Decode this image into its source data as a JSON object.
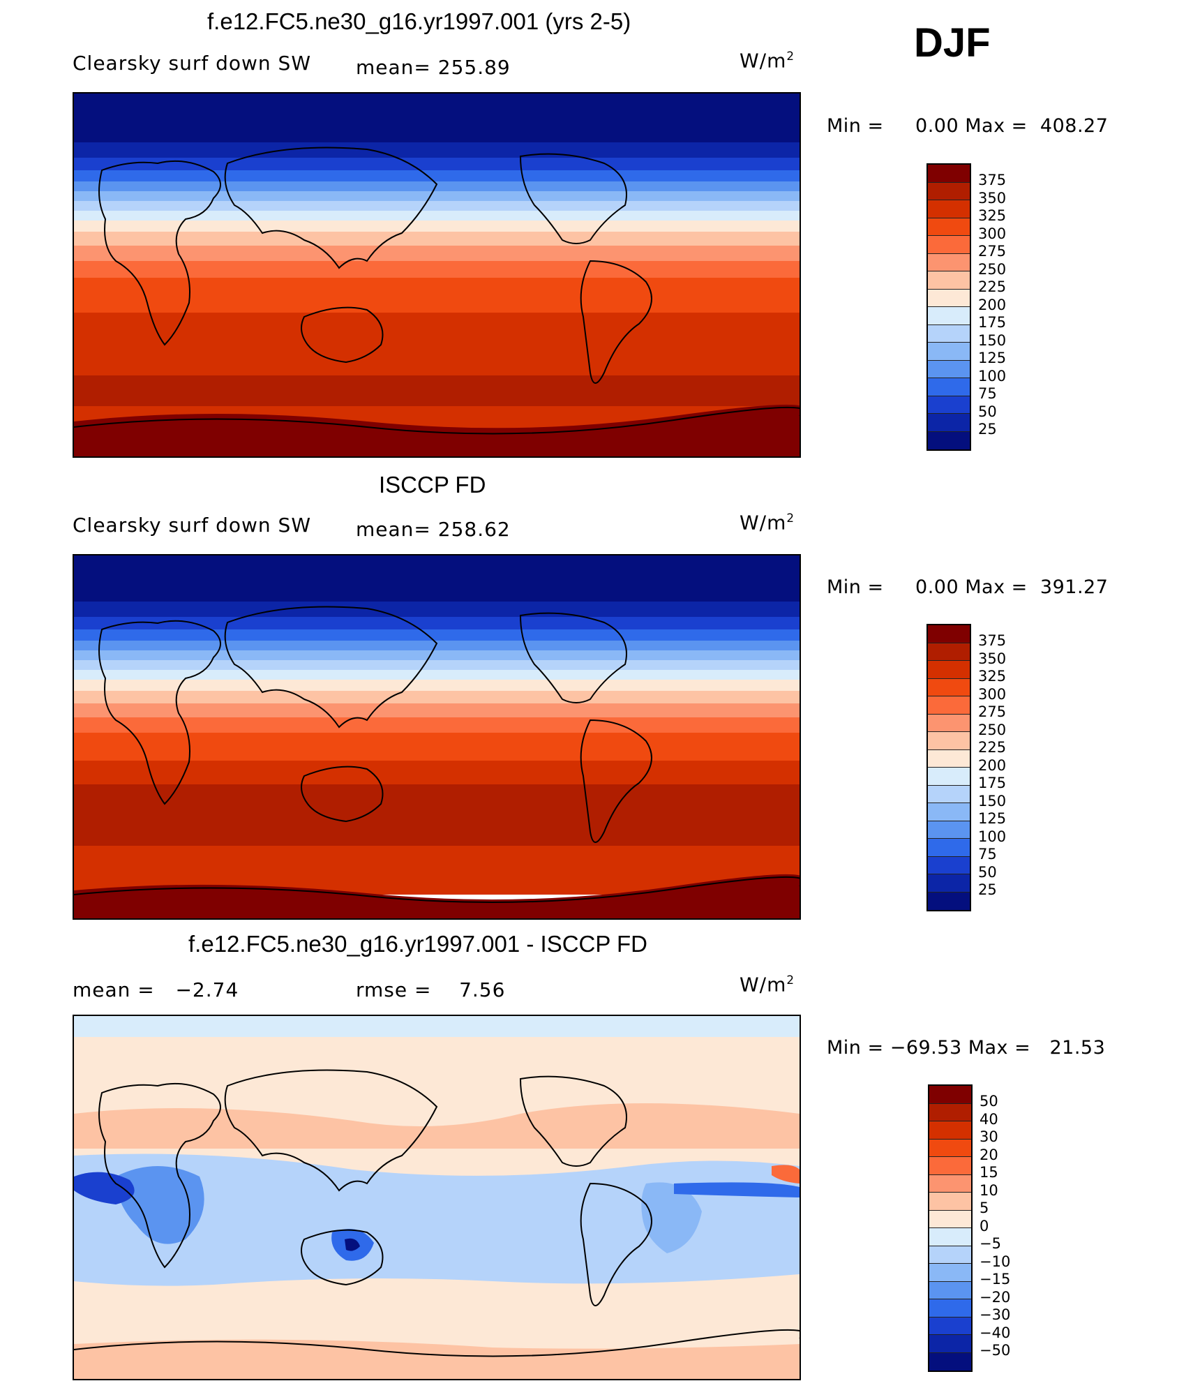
{
  "season": "DJF",
  "panels": [
    {
      "title": "f.e12.FC5.ne30_g16.yr1997.001 (yrs 2-5)",
      "left_label": "Clearsky surf down SW",
      "center_label": "mean= 255.89",
      "units": "W/m",
      "units_sup": "2",
      "minmax": "Min =     0.00 Max =  408.27",
      "palette": "sw",
      "colorbar_labels": [
        "375",
        "350",
        "325",
        "300",
        "275",
        "250",
        "225",
        "200",
        "175",
        "150",
        "125",
        "100",
        "75",
        "50",
        "25"
      ]
    },
    {
      "title": "ISCCP FD",
      "left_label": "Clearsky surf down SW",
      "center_label": "mean= 258.62",
      "units": "W/m",
      "units_sup": "2",
      "minmax": "Min =     0.00 Max =  391.27",
      "palette": "sw",
      "colorbar_labels": [
        "375",
        "350",
        "325",
        "300",
        "275",
        "250",
        "225",
        "200",
        "175",
        "150",
        "125",
        "100",
        "75",
        "50",
        "25"
      ]
    },
    {
      "title": "f.e12.FC5.ne30_g16.yr1997.001 - ISCCP FD",
      "left_label": "mean =   −2.74",
      "center_label": "rmse =    7.56",
      "units": "W/m",
      "units_sup": "2",
      "minmax": "Min = −69.53 Max =   21.53",
      "palette": "diff",
      "colorbar_labels": [
        "50",
        "40",
        "30",
        "20",
        "15",
        "10",
        "5",
        "0",
        "−5",
        "−10",
        "−15",
        "−20",
        "−30",
        "−40",
        "−50"
      ]
    }
  ],
  "colors": {
    "sw": [
      "#7f0000",
      "#b01e00",
      "#d43000",
      "#f04a10",
      "#fb6a3a",
      "#fc9470",
      "#fdc3a4",
      "#fde8d6",
      "#d8ecfb",
      "#b5d3fa",
      "#8ab8f6",
      "#5b94f0",
      "#2f6aea",
      "#1a40cf",
      "#0c25a7",
      "#040f7e"
    ],
    "diff": [
      "#7f0000",
      "#b01e00",
      "#d43000",
      "#f04a10",
      "#fb6a3a",
      "#fc9470",
      "#fdc3a4",
      "#fde8d6",
      "#d8ecfb",
      "#b5d3fa",
      "#8ab8f6",
      "#5b94f0",
      "#2f6aea",
      "#1a40cf",
      "#0c25a7",
      "#040f7e"
    ]
  }
}
